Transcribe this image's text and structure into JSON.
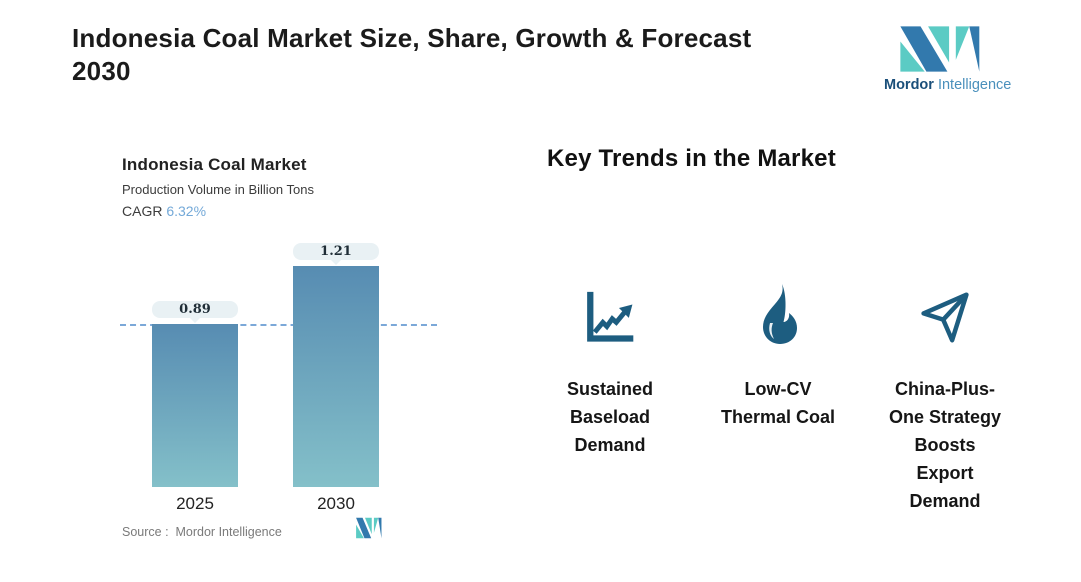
{
  "header": {
    "title": "Indonesia Coal Market Size, Share, Growth & Forecast\n2030"
  },
  "brand": {
    "name_part1": "Mordor ",
    "name_part2": "Intelligence",
    "logo_blue": "#3279ad",
    "logo_teal": "#5bcbc4"
  },
  "chart_data": {
    "type": "bar",
    "title": "Indonesia Coal Market",
    "subtitle": "Production Volume in Billion Tons",
    "cagr_label": "CAGR",
    "cagr_value": "6.32%",
    "categories": [
      "2025",
      "2030"
    ],
    "values": [
      0.89,
      1.21
    ],
    "value_labels": [
      "0.89",
      "1.21"
    ],
    "reference_line_value": 0.89,
    "ylim": [
      0,
      1.4
    ],
    "grid": false,
    "legend": false,
    "source": "Source :  Mordor Intelligence",
    "bar_gradient_top": "#578cb2",
    "bar_gradient_bottom": "#84c0c9",
    "reference_line_color": "#7ba8d8",
    "value_pill_bg": "#e9f1f4",
    "cagr_value_color": "#74a9d8"
  },
  "trends": {
    "heading": "Key Trends in the Market",
    "icon_color": "#1d5d80",
    "items": [
      {
        "icon": "line-chart-icon",
        "label": "Sustained\nBaseload\nDemand"
      },
      {
        "icon": "flame-icon",
        "label": "Low-CV\nThermal Coal"
      },
      {
        "icon": "paper-plane-icon",
        "label": "China-Plus-\nOne Strategy\nBoosts\nExport\nDemand"
      }
    ]
  }
}
